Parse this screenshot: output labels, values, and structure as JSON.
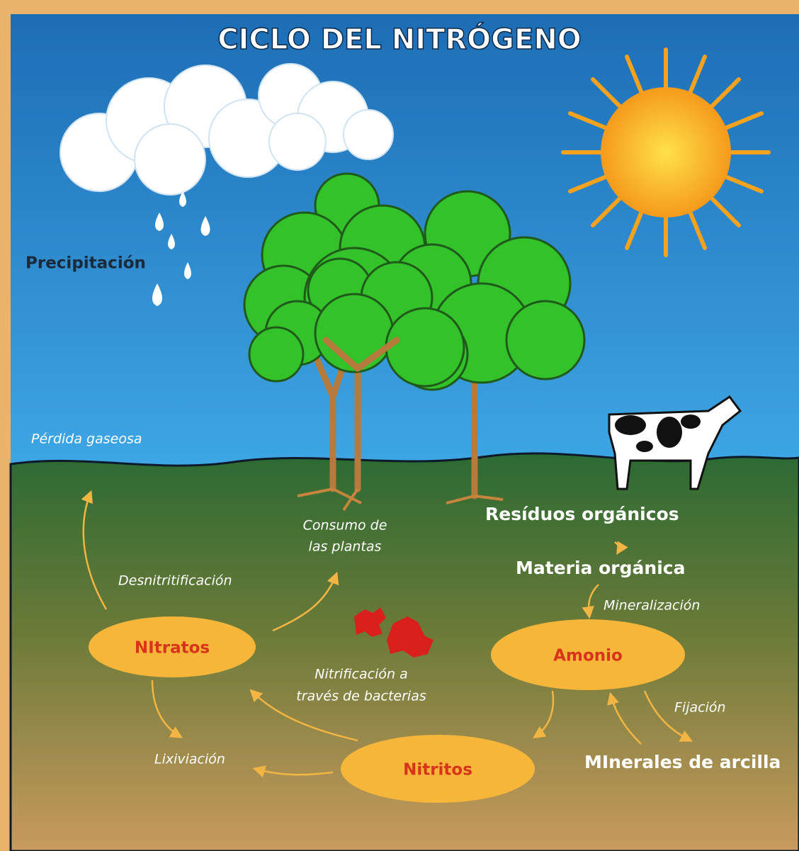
{
  "title": "CICLO DEL NITRÓGENO",
  "labels": {
    "precipitacion": "Precipitación",
    "perdida_gaseosa": "Pérdida gaseosa",
    "consumo_plantas": [
      "Consumo de",
      "las plantas"
    ],
    "residuos_organicos": "Resíduos orgánicos",
    "materia_organica": "Materia orgánica",
    "mineralizacion": "Mineralización",
    "desnitrificacion": "Desnitritificación",
    "nitrificacion": [
      "Nitrificación a",
      "través de bacterias"
    ],
    "fijacion": "Fijación",
    "lixiviacion": "Lixiviación",
    "minerales_arcilla": "MInerales de arcilla"
  },
  "nodes": [
    {
      "label": "NItratos"
    },
    {
      "label": "Amonio"
    },
    {
      "label": "Nitritos"
    }
  ]
}
